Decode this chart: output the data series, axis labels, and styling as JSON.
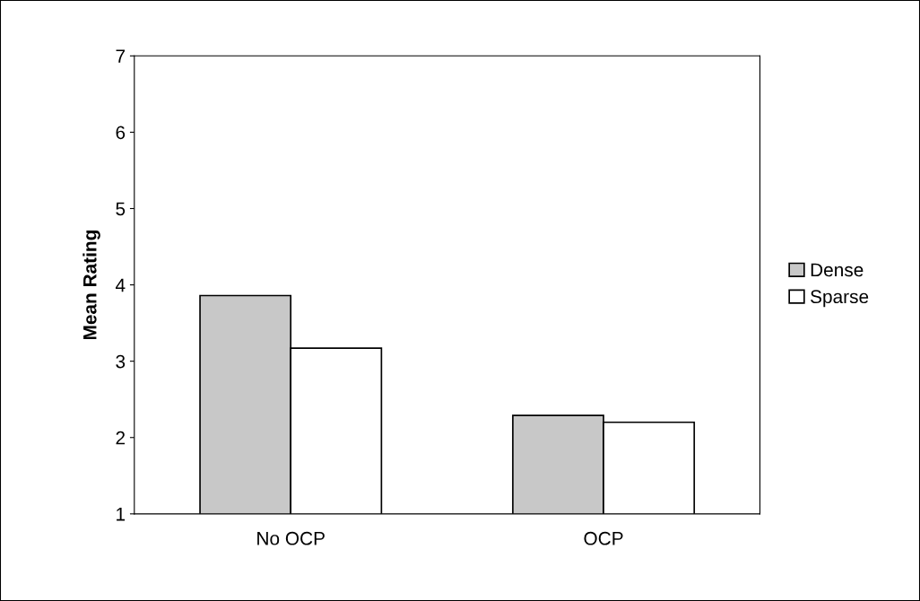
{
  "chart_data": {
    "type": "bar",
    "ylabel": "Mean Rating",
    "categories": [
      "No OCP",
      "OCP"
    ],
    "series": [
      {
        "name": "Dense",
        "color": "#c8c8c8",
        "values": [
          3.86,
          2.29
        ]
      },
      {
        "name": "Sparse",
        "color": "#ffffff",
        "values": [
          3.17,
          2.2
        ]
      }
    ],
    "ylim": [
      1,
      7
    ],
    "yticks": [
      1,
      2,
      3,
      4,
      5,
      6,
      7
    ],
    "grid": false,
    "legend": "right"
  }
}
